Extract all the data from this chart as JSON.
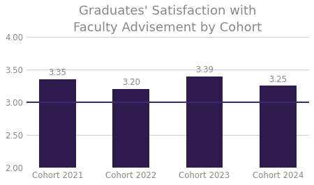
{
  "title": "Graduates' Satisfaction with\nFaculty Advisement by Cohort",
  "categories": [
    "Cohort 2021",
    "Cohort 2022",
    "Cohort 2023",
    "Cohort 2024"
  ],
  "values": [
    3.35,
    3.2,
    3.39,
    3.25
  ],
  "bar_color": "#2d1b4e",
  "reference_line_y": 3.0,
  "reference_line_color": "#3d2b6e",
  "ylim": [
    2.0,
    4.0
  ],
  "yticks": [
    2.0,
    2.5,
    3.0,
    3.5,
    4.0
  ],
  "title_fontsize": 13,
  "tick_fontsize": 8.5,
  "bar_width": 0.5,
  "background_color": "#ffffff",
  "grid_color": "#cccccc",
  "text_color": "#888888",
  "value_label_fontsize": 8.5,
  "bar_bottom": 2.0
}
